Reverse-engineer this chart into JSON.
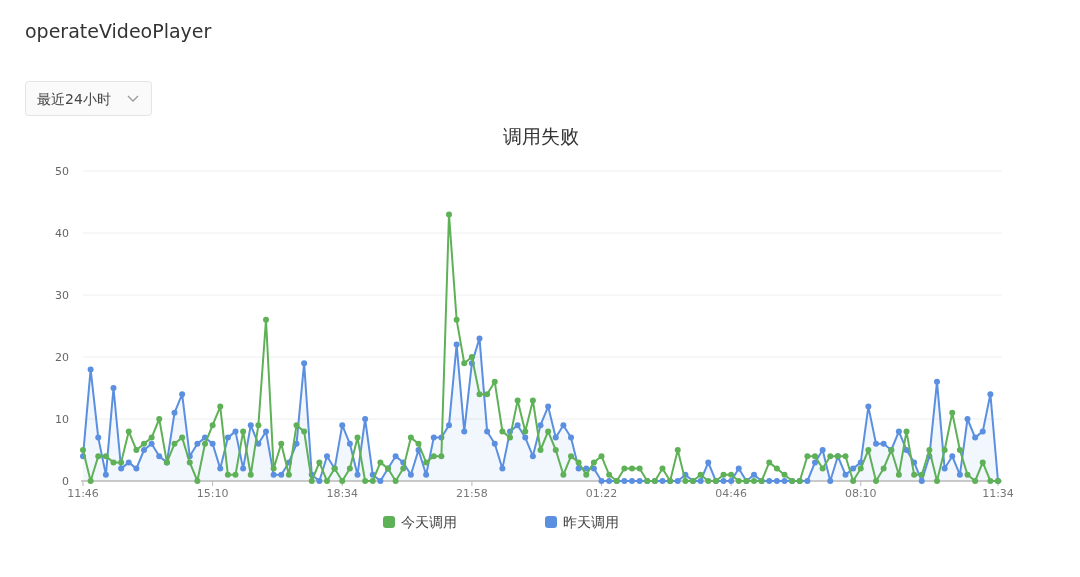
{
  "chart_data": {
    "type": "line",
    "title": "调用失败",
    "annotations": [
      "operateVideoPlayer",
      "最近24小时"
    ],
    "categories": [
      "11:46",
      null,
      null,
      null,
      null,
      null,
      null,
      null,
      null,
      null,
      null,
      null,
      null,
      null,
      null,
      null,
      null,
      "15:10",
      null,
      null,
      null,
      null,
      null,
      null,
      null,
      null,
      null,
      null,
      null,
      null,
      null,
      null,
      null,
      null,
      "18:34",
      null,
      null,
      null,
      null,
      null,
      null,
      null,
      null,
      null,
      null,
      null,
      null,
      null,
      null,
      null,
      null,
      "21:58",
      null,
      null,
      null,
      null,
      null,
      null,
      null,
      null,
      null,
      null,
      null,
      null,
      null,
      null,
      null,
      null,
      "01:22",
      null,
      null,
      null,
      null,
      null,
      null,
      null,
      null,
      null,
      null,
      null,
      null,
      null,
      null,
      null,
      null,
      "04:46",
      null,
      null,
      null,
      null,
      null,
      null,
      null,
      null,
      null,
      null,
      null,
      null,
      null,
      null,
      null,
      null,
      "08:10",
      null,
      null,
      null,
      null,
      null,
      null,
      null,
      null,
      null,
      null,
      null,
      null,
      null,
      null,
      null,
      null,
      null,
      "11:34"
    ],
    "series": [
      {
        "name": "今天调用",
        "color": "#5fb157",
        "type": "line",
        "values": [
          5,
          0,
          4,
          4,
          3,
          3,
          8,
          5,
          6,
          7,
          10,
          3,
          6,
          7,
          3,
          0,
          6,
          9,
          12,
          1,
          1,
          8,
          1,
          9,
          26,
          2,
          6,
          1,
          9,
          8,
          0,
          3,
          0,
          2,
          0,
          2,
          7,
          0,
          0,
          3,
          2,
          0,
          2,
          7,
          6,
          3,
          4,
          4,
          43,
          26,
          19,
          20,
          14,
          14,
          16,
          8,
          7,
          13,
          8,
          13,
          5,
          8,
          5,
          1,
          4,
          3,
          1,
          3,
          4,
          1,
          0,
          2,
          2,
          2,
          0,
          0,
          2,
          0,
          5,
          0,
          0,
          1,
          0,
          0,
          1,
          1,
          0,
          0,
          0,
          0,
          3,
          2,
          1,
          0,
          0,
          4,
          4,
          2,
          4,
          4,
          4,
          0,
          2,
          5,
          0,
          2,
          5,
          1,
          8,
          1,
          1,
          5,
          0,
          5,
          11,
          5,
          1,
          0,
          3,
          0,
          0
        ]
      },
      {
        "name": "昨天调用",
        "color": "#5b8fe0",
        "type": "area",
        "values": [
          4,
          18,
          7,
          1,
          15,
          2,
          3,
          2,
          5,
          6,
          4,
          3,
          11,
          14,
          4,
          6,
          7,
          6,
          2,
          7,
          8,
          2,
          9,
          6,
          8,
          1,
          1,
          3,
          6,
          19,
          1,
          0,
          4,
          2,
          9,
          6,
          1,
          10,
          1,
          0,
          2,
          4,
          3,
          1,
          5,
          1,
          7,
          7,
          9,
          22,
          8,
          19,
          23,
          8,
          6,
          2,
          8,
          9,
          7,
          4,
          9,
          12,
          7,
          9,
          7,
          2,
          2,
          2,
          0,
          0,
          0,
          0,
          0,
          0,
          0,
          0,
          0,
          0,
          0,
          1,
          0,
          0,
          3,
          0,
          0,
          0,
          2,
          0,
          1,
          0,
          0,
          0,
          0,
          0,
          0,
          0,
          3,
          5,
          0,
          4,
          1,
          2,
          3,
          12,
          6,
          6,
          5,
          8,
          5,
          3,
          0,
          4,
          16,
          2,
          4,
          1,
          10,
          7,
          8,
          14,
          0
        ]
      }
    ],
    "ylim": [
      0,
      50
    ],
    "yticks": [
      0,
      10,
      20,
      30,
      40,
      50
    ],
    "grid": "y",
    "legend": "bottom",
    "marker": "circle"
  }
}
